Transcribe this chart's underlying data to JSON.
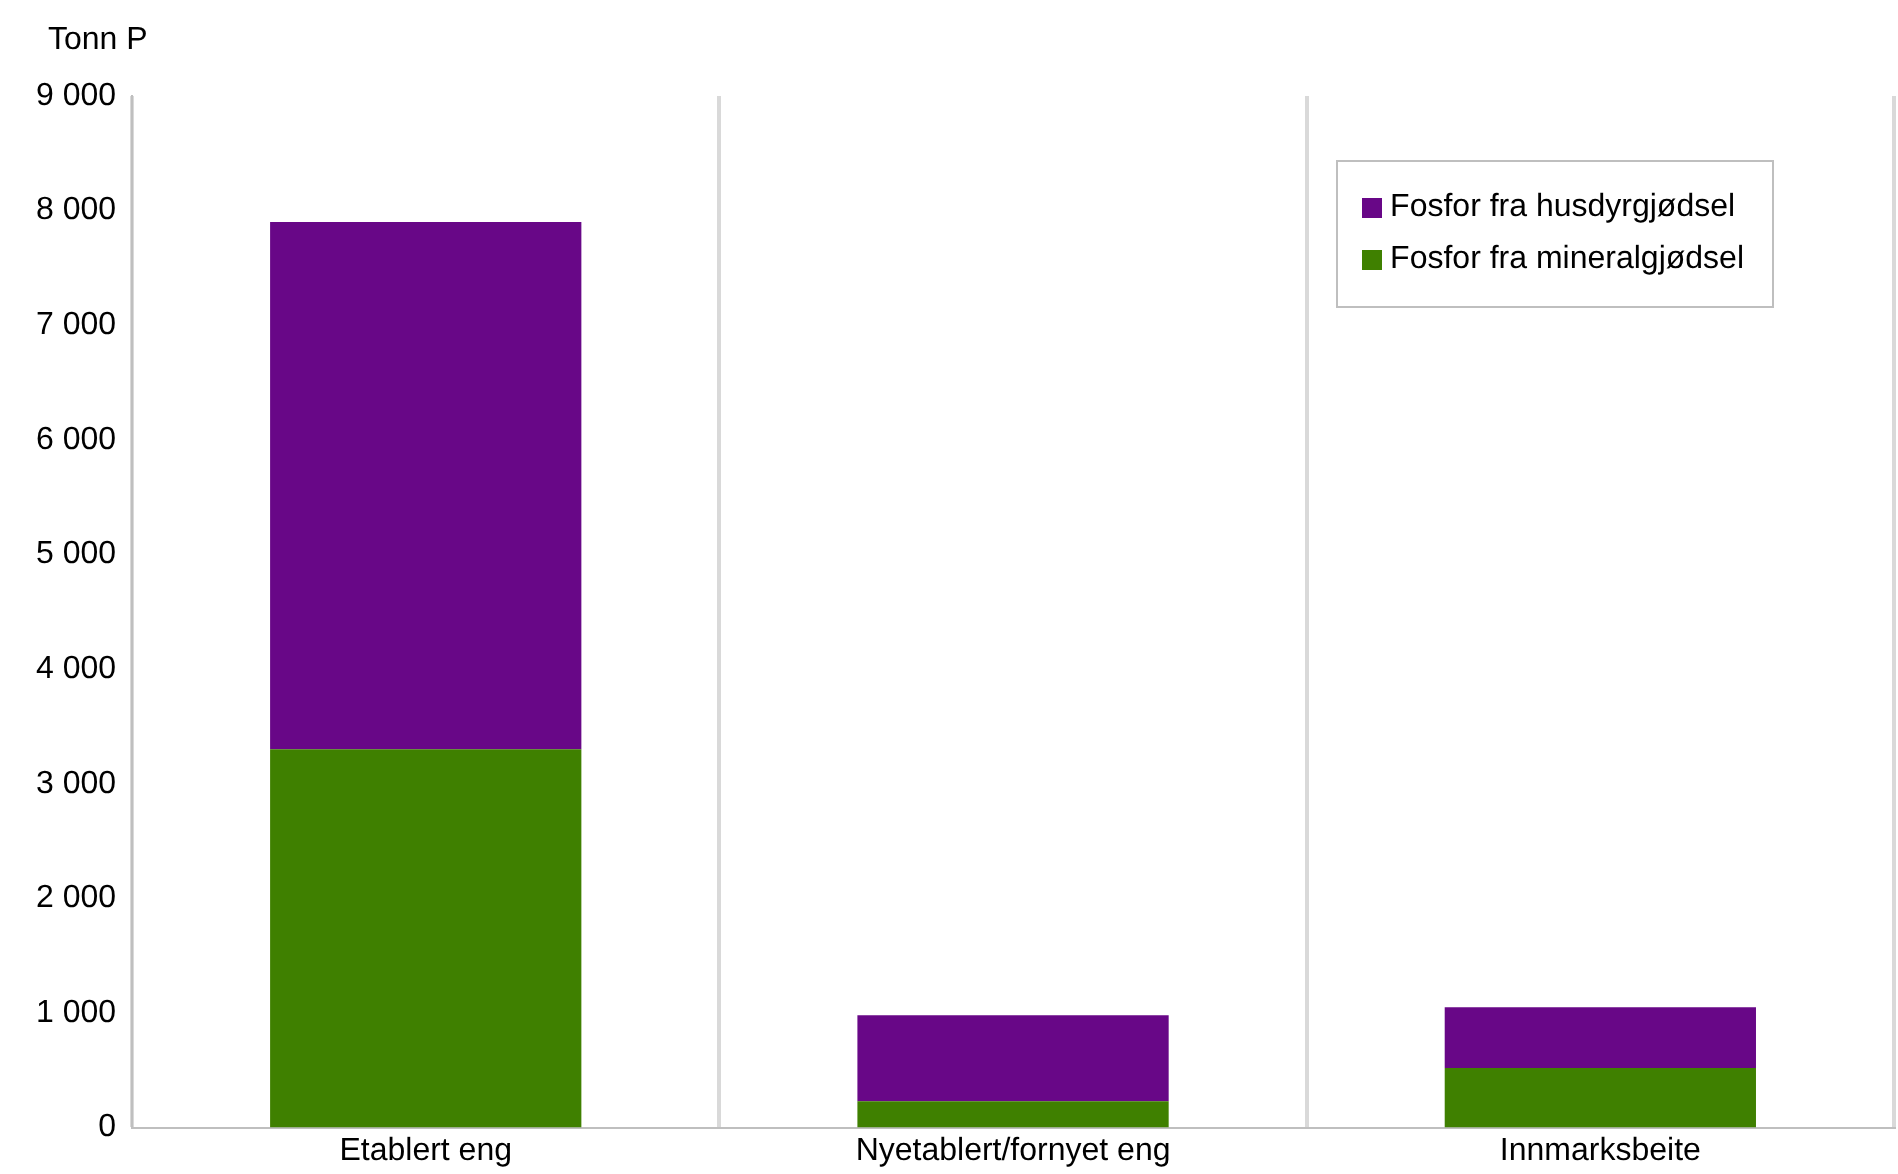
{
  "chart_data": {
    "type": "bar",
    "stacked": true,
    "ylabel": "Tonn P",
    "categories": [
      "Etablert eng",
      "Nyetablert/fornyet eng",
      "Innmarksbeite"
    ],
    "series": [
      {
        "name": "Fosfor fra mineralgjødsel",
        "color": "#3f8000",
        "values": [
          3300,
          230,
          520
        ]
      },
      {
        "name": "Fosfor fra husdyrgjødsel",
        "color": "#680787",
        "values": [
          4600,
          750,
          530
        ]
      }
    ],
    "ylim": [
      0,
      9000
    ],
    "yticks": [
      0,
      {
        "value": 1000,
        "label": "1 000"
      },
      {
        "value": 2000,
        "label": "2 000"
      },
      {
        "value": 3000,
        "label": "3 000"
      },
      {
        "value": 4000,
        "label": "4 000"
      },
      {
        "value": 5000,
        "label": "5 000"
      },
      {
        "value": 6000,
        "label": "6 000"
      },
      {
        "value": 7000,
        "label": "7 000"
      },
      {
        "value": 8000,
        "label": "8 000"
      },
      {
        "value": 9000,
        "label": "9 000"
      }
    ],
    "grid": "x",
    "legend": "top right"
  }
}
